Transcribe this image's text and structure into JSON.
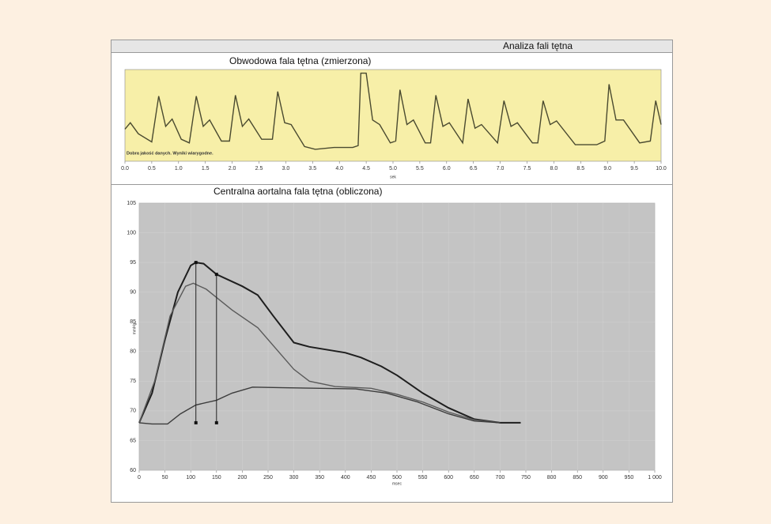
{
  "header": {
    "title": "Analiza fali tętna"
  },
  "chart_data": [
    {
      "type": "line",
      "title": "Obwodowa fala tętna (zmierzona)",
      "x_label": "sek",
      "annotation": "Dobra jakość danych. Wyniki wiarygodne.",
      "xlim": [
        0,
        10
      ],
      "ylim": [
        0,
        100
      ],
      "grid": false,
      "xticks": [
        {
          "value": 0,
          "label": "0.0"
        },
        0.5,
        {
          "value": 1,
          "label": "1.0"
        },
        1.5,
        {
          "value": 2,
          "label": "2.0"
        },
        2.5,
        {
          "value": 3,
          "label": "3.0"
        },
        3.5,
        {
          "value": 4,
          "label": "4.0"
        },
        4.5,
        {
          "value": 5,
          "label": "5.0"
        },
        5.5,
        {
          "value": 6,
          "label": "6.0"
        },
        6.5,
        {
          "value": 7,
          "label": "7.0"
        },
        7.5,
        {
          "value": 8,
          "label": "8.0"
        },
        8.5,
        {
          "value": 9,
          "label": "9.0"
        },
        9.5,
        {
          "value": 10,
          "label": "10.0"
        }
      ],
      "series": [
        {
          "color": "#4a4a30",
          "x": [
            0.0,
            0.1,
            0.25,
            0.5,
            0.63,
            0.76,
            0.88,
            1.05,
            1.2,
            1.33,
            1.46,
            1.58,
            1.8,
            1.95,
            2.06,
            2.19,
            2.31,
            2.55,
            2.75,
            2.85,
            2.98,
            3.1,
            3.35,
            3.55,
            3.9,
            4.25,
            4.35,
            4.4,
            4.5,
            4.62,
            4.75,
            4.95,
            5.05,
            5.13,
            5.26,
            5.38,
            5.6,
            5.7,
            5.8,
            5.93,
            6.05,
            6.3,
            6.4,
            6.53,
            6.65,
            6.95,
            7.07,
            7.2,
            7.32,
            7.6,
            7.7,
            7.8,
            7.93,
            8.05,
            8.4,
            8.8,
            8.95,
            9.03,
            9.16,
            9.3,
            9.6,
            9.8,
            9.9,
            10.0
          ],
          "values": [
            35,
            42,
            30,
            21,
            71,
            38,
            46,
            24,
            20,
            71,
            38,
            45,
            22,
            22,
            72,
            38,
            46,
            24,
            24,
            76,
            42,
            40,
            16,
            13,
            15,
            15,
            17,
            96,
            96,
            45,
            40,
            20,
            22,
            78,
            40,
            45,
            20,
            20,
            72,
            38,
            42,
            20,
            68,
            36,
            40,
            20,
            66,
            38,
            42,
            20,
            20,
            66,
            40,
            44,
            18,
            18,
            22,
            84,
            45,
            45,
            20,
            22,
            66,
            40
          ]
        }
      ]
    },
    {
      "type": "line",
      "title": "Centralna aortalna fala tętna (obliczona)",
      "x_label": "msec",
      "y_label": "mmHg",
      "xlim": [
        0,
        1000
      ],
      "ylim": [
        60,
        105
      ],
      "grid": true,
      "xticks": [
        0,
        50,
        100,
        150,
        200,
        250,
        300,
        350,
        400,
        450,
        500,
        550,
        600,
        650,
        700,
        750,
        800,
        850,
        900,
        950,
        {
          "value": 1000,
          "label": "1 000"
        }
      ],
      "yticks": [
        60,
        65,
        70,
        75,
        80,
        85,
        90,
        95,
        100,
        105
      ],
      "series": [
        {
          "color": "#1e1e1e",
          "x": [
            0,
            25,
            50,
            75,
            100,
            110,
            125,
            150,
            200,
            230,
            260,
            300,
            330,
            400,
            430,
            470,
            500,
            550,
            600,
            650,
            700,
            740
          ],
          "values": [
            68,
            73,
            82,
            90,
            94.5,
            95,
            94.8,
            93,
            91,
            89.5,
            86,
            81.5,
            80.8,
            79.8,
            79,
            77.5,
            76,
            73,
            70.5,
            68.6,
            68,
            68
          ]
        },
        {
          "color": "#5a5a5a",
          "x": [
            0,
            30,
            60,
            90,
            105,
            130,
            180,
            230,
            280,
            300,
            330,
            380,
            450,
            500,
            550,
            600,
            650,
            700
          ],
          "values": [
            68,
            75,
            86,
            91,
            91.5,
            90.5,
            87,
            84,
            79,
            77,
            75,
            74.1,
            73.8,
            72.8,
            71.5,
            69.8,
            68.5,
            68
          ]
        },
        {
          "color": "#3c3c3c",
          "x": [
            0,
            25,
            55,
            80,
            110,
            150,
            180,
            220,
            280,
            350,
            420,
            480,
            540,
            600,
            650,
            700
          ],
          "values": [
            68,
            67.8,
            67.8,
            69.5,
            71,
            71.8,
            73,
            74,
            73.9,
            73.8,
            73.7,
            73,
            71.5,
            69.5,
            68.3,
            68
          ]
        }
      ],
      "markers": [
        {
          "x": 110,
          "y": [
            68,
            95
          ]
        },
        {
          "x": 150,
          "y": [
            68,
            93
          ]
        }
      ]
    }
  ]
}
